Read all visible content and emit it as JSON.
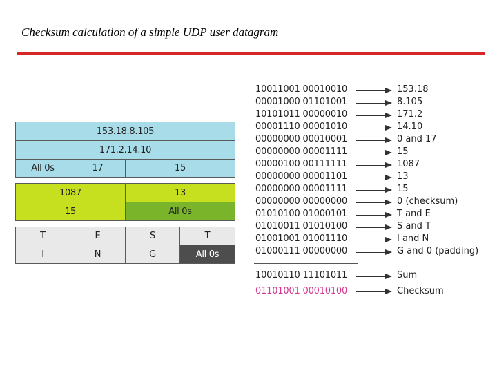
{
  "title": "Checksum calculation of a simple UDP user datagram",
  "colors": {
    "rule": "#d62828",
    "pseudo_header": "#a9dce9",
    "udp_header": "#c6df1e",
    "checksum_cell": "#7ab42a",
    "data": "#e9e9e9",
    "padding": "#4d4d4d",
    "checksum_bits": "#d3398f"
  },
  "datagram": {
    "pseudo_header": {
      "source_ip": "153.18.8.105",
      "dest_ip": "171.2.14.10",
      "zeros": "All 0s",
      "protocol": "17",
      "length": "15"
    },
    "udp_header": {
      "source_port": "1087",
      "dest_port": "13",
      "length": "15",
      "checksum": "All 0s"
    },
    "data": {
      "row1": [
        "T",
        "E",
        "S",
        "T"
      ],
      "row2": [
        "I",
        "N",
        "G",
        "All 0s"
      ]
    }
  },
  "calculation": {
    "rows": [
      {
        "bits": "10011001 00010010",
        "value": "153.18"
      },
      {
        "bits": "00001000 01101001",
        "value": "8.105"
      },
      {
        "bits": "10101011 00000010",
        "value": "171.2"
      },
      {
        "bits": "00001110 00001010",
        "value": "14.10"
      },
      {
        "bits": "00000000 00010001",
        "value": "0 and 17"
      },
      {
        "bits": "00000000 00001111",
        "value": "15"
      },
      {
        "bits": "00000100 00111111",
        "value": "1087"
      },
      {
        "bits": "00000000 00001101",
        "value": "13"
      },
      {
        "bits": "00000000 00001111",
        "value": "15"
      },
      {
        "bits": "00000000 00000000",
        "value": "0 (checksum)"
      },
      {
        "bits": "01010100 01000101",
        "value": "T and E"
      },
      {
        "bits": "01010011 01010100",
        "value": "S and T"
      },
      {
        "bits": "01001001 01001110",
        "value": "I and N"
      },
      {
        "bits": "01000111 00000000",
        "value": "G and 0 (padding)"
      }
    ],
    "sum": {
      "bits": "10010110 11101011",
      "label": "Sum"
    },
    "checksum": {
      "bits": "01101001 00010100",
      "label": "Checksum"
    }
  }
}
